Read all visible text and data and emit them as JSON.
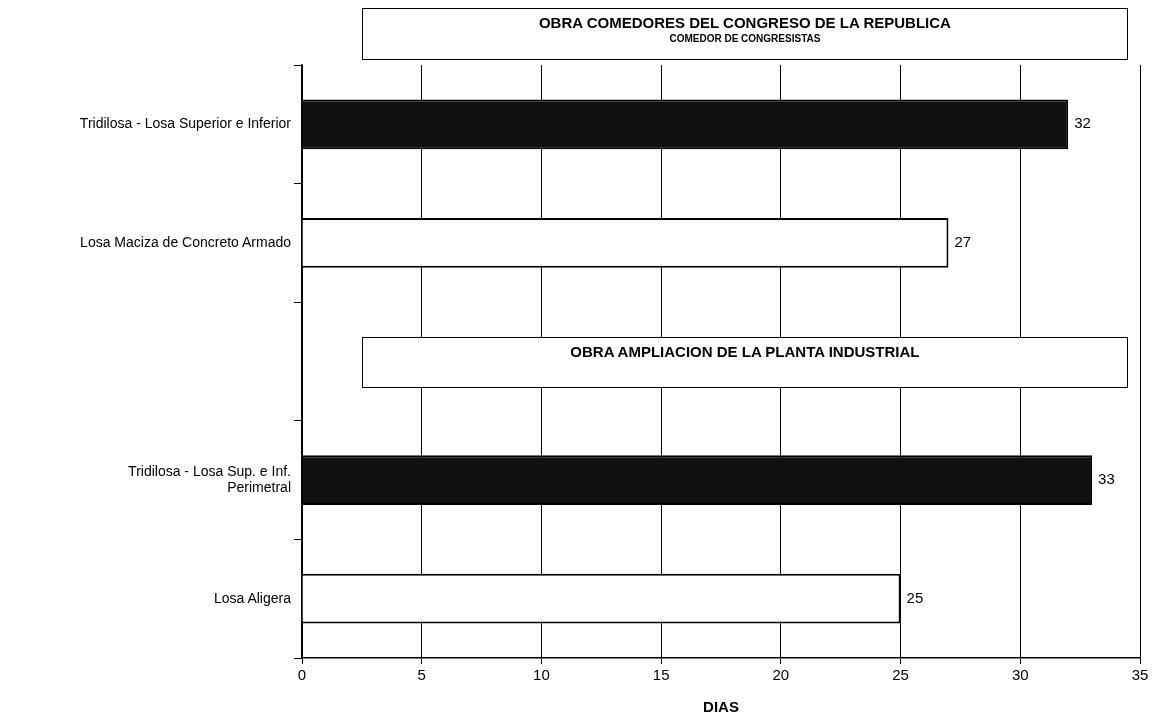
{
  "chart_data": {
    "type": "bar",
    "orientation": "horizontal",
    "title": "OBRA COMEDORES DEL CONGRESO DE LA REPUBLICA",
    "subtitle": "COMEDOR DE CONGRESISTAS",
    "xlabel": "DIAS",
    "categories": [
      "Tridilosa - Losa Superior e Inferior",
      "Losa Maciza de Concreto Armado",
      null,
      "Tridilosa - Losa Sup. e Inf. Perimetral",
      "Losa Aligera"
    ],
    "values": [
      32,
      27,
      null,
      33,
      25
    ],
    "colors": [
      "#111111",
      "#ffffff",
      null,
      "#111111",
      "#ffffff"
    ],
    "xlim": [
      0,
      35
    ],
    "xticks": [
      0,
      5,
      10,
      15,
      20,
      25,
      30,
      35
    ],
    "grid": "x",
    "data_labels": true,
    "legend": false,
    "annotations": [
      "OBRA AMPLIACION DE LA PLANTA INDUSTRIAL"
    ]
  }
}
